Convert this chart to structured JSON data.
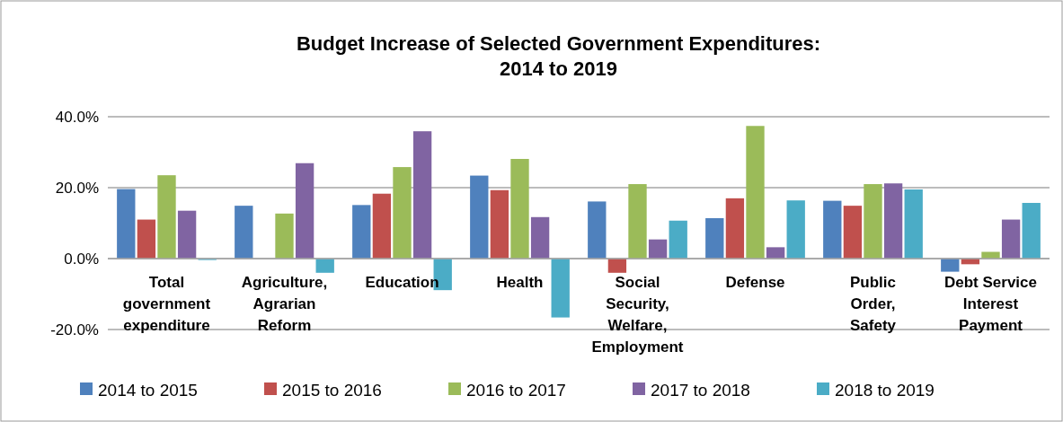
{
  "chart_data": {
    "type": "bar",
    "title": "Budget Increase of Selected Government Expenditures:\n2014 to 2019",
    "categories": [
      "Total\ngovernment\nexpenditure",
      "Agriculture,\nAgrarian\nReform",
      "Education",
      "Health",
      "Social\nSecurity,\nWelfare,\nEmployment",
      "Defense",
      "Public\nOrder,\nSafety",
      "Debt Service\nInterest\nPayment"
    ],
    "series": [
      {
        "name": "2014 to 2015",
        "color": "#4f81bd",
        "values": [
          19.6,
          14.9,
          15.1,
          23.4,
          16.1,
          11.4,
          16.3,
          -3.7
        ]
      },
      {
        "name": "2015 to 2016",
        "color": "#c0504d",
        "values": [
          11.0,
          0,
          18.3,
          19.3,
          -4.0,
          17.0,
          14.9,
          -1.6
        ]
      },
      {
        "name": "2016 to 2017",
        "color": "#9bbb59",
        "values": [
          23.5,
          12.7,
          25.8,
          28.1,
          21.0,
          37.4,
          21.0,
          1.9
        ]
      },
      {
        "name": "2017 to 2018",
        "color": "#8064a2",
        "values": [
          13.5,
          26.9,
          35.9,
          11.7,
          5.4,
          3.2,
          21.2,
          11.0
        ]
      },
      {
        "name": "2018 to 2019",
        "color": "#4bacc6",
        "values": [
          -0.4,
          -4.0,
          -8.9,
          -16.6,
          10.7,
          16.4,
          19.5,
          15.7
        ]
      }
    ],
    "ylim": [
      -20,
      40
    ],
    "yticks": [
      {
        "value": -20,
        "label": "-20.0%"
      },
      {
        "value": 0,
        "label": "0.0%"
      },
      {
        "value": 20,
        "label": "20.0%"
      },
      {
        "value": 40,
        "label": "40.0%"
      }
    ],
    "grid": "y",
    "legend": "bottom"
  }
}
